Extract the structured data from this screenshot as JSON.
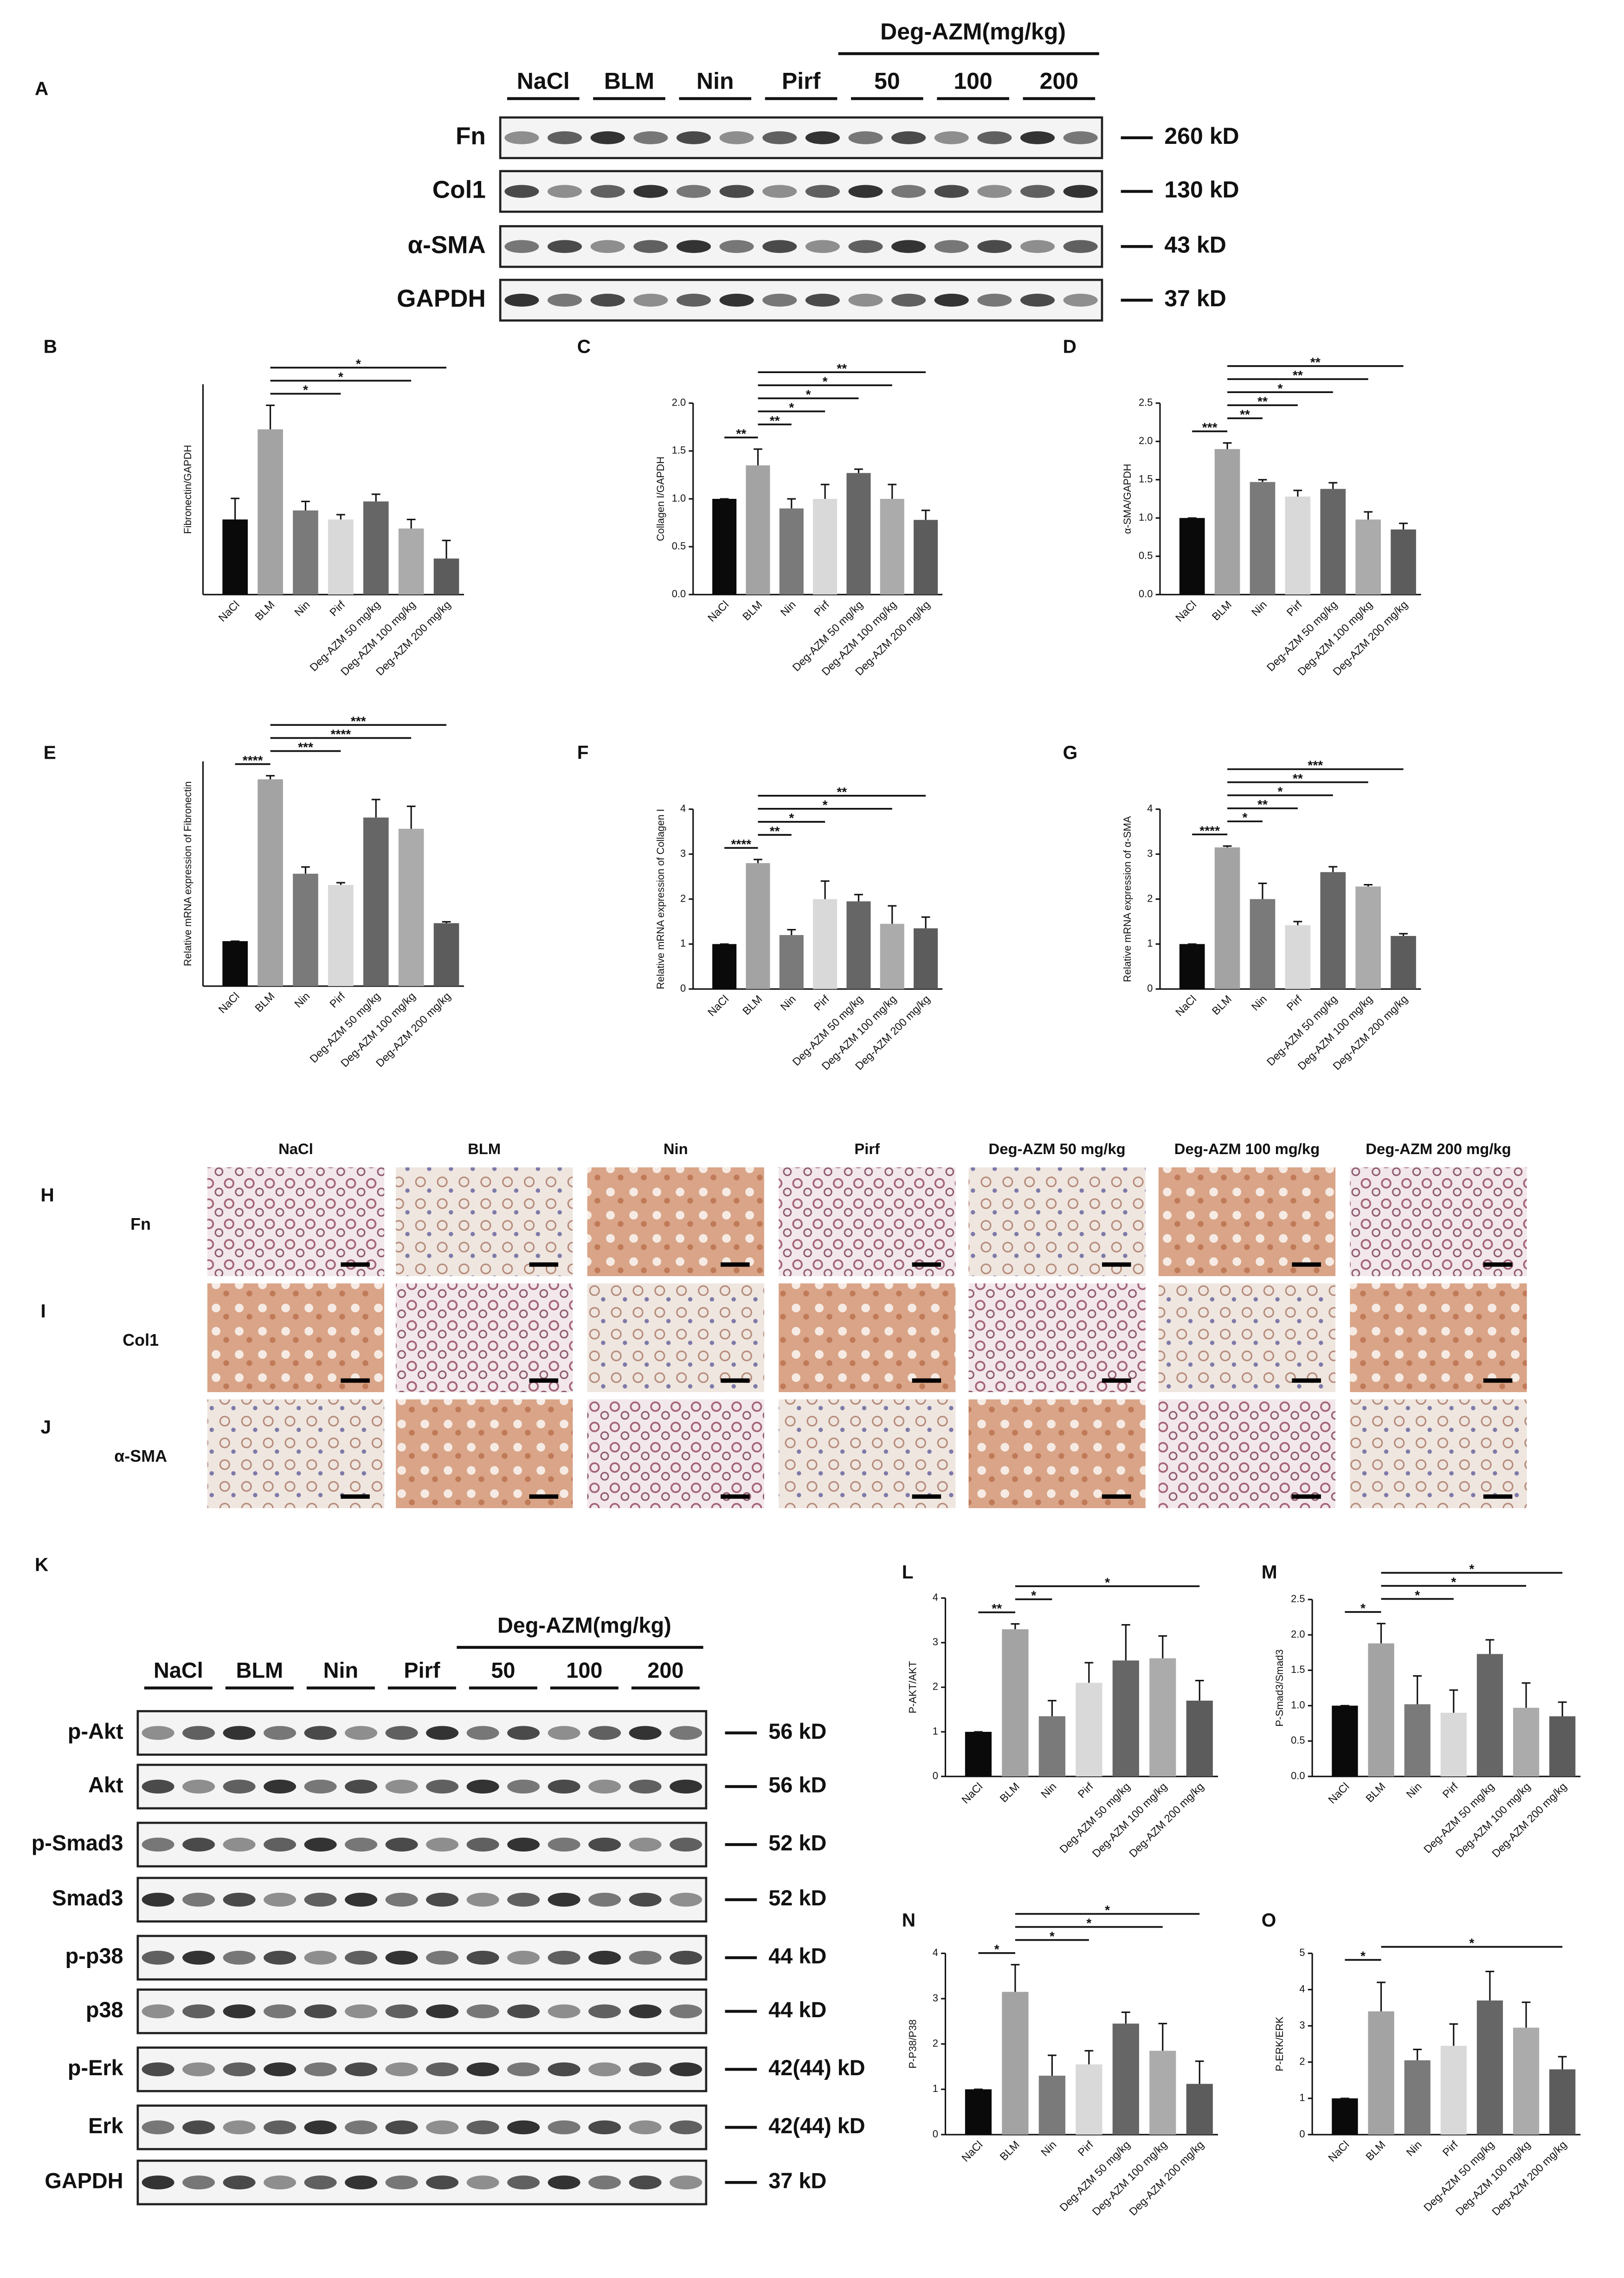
{
  "blot_a": {
    "letter": "A",
    "group_label": "Deg-AZM(mg/kg)",
    "lanes": [
      "NaCl",
      "BLM",
      "Nin",
      "Pirf",
      "50",
      "100",
      "200"
    ],
    "rows": [
      {
        "label": "Fn",
        "size": "260 kD"
      },
      {
        "label": "Col1",
        "size": "130 kD"
      },
      {
        "label": "α-SMA",
        "size": "43 kD"
      },
      {
        "label": "GAPDH",
        "size": "37 kD"
      }
    ]
  },
  "histology": {
    "columns": [
      "NaCl",
      "BLM",
      "Nin",
      "Pirf",
      "Deg-AZM 50 mg/kg",
      "Deg-AZM 100 mg/kg",
      "Deg-AZM 200 mg/kg"
    ],
    "rows": [
      {
        "letter": "H",
        "label": "Fn"
      },
      {
        "letter": "I",
        "label": "Col1"
      },
      {
        "letter": "J",
        "label": "α-SMA"
      }
    ]
  },
  "blot_k": {
    "letter": "K",
    "group_label": "Deg-AZM(mg/kg)",
    "lanes": [
      "NaCl",
      "BLM",
      "Nin",
      "Pirf",
      "50",
      "100",
      "200"
    ],
    "rows": [
      {
        "label": "p-Akt",
        "size": "56 kD"
      },
      {
        "label": "Akt",
        "size": "56 kD"
      },
      {
        "label": "p-Smad3",
        "size": "52 kD"
      },
      {
        "label": "Smad3",
        "size": "52 kD"
      },
      {
        "label": "p-p38",
        "size": "44 kD"
      },
      {
        "label": "p38",
        "size": "44 kD"
      },
      {
        "label": "p-Erk",
        "size": "42(44) kD"
      },
      {
        "label": "Erk",
        "size": "42(44) kD"
      },
      {
        "label": "GAPDH",
        "size": "37 kD"
      }
    ]
  },
  "chart_data": [
    {
      "type": "bar",
      "letter": "B",
      "ylabel": "Fibronectin/GAPDH",
      "categories": [
        "NaCl",
        "BLM",
        "Nin",
        "Pirf",
        "Deg-AZM 50 mg/kg",
        "Deg-AZM 100 mg/kg",
        "Deg-AZM 200 mg/kg"
      ],
      "values": [
        1.25,
        2.75,
        1.4,
        1.25,
        1.55,
        1.1,
        0.6
      ],
      "errors": [
        0.35,
        0.4,
        0.15,
        0.08,
        0.12,
        0.15,
        0.3
      ],
      "colors": [
        "#0a0a0a",
        "#a3a3a3",
        "#7a7a7a",
        "#d9d9d9",
        "#666666",
        "#ababab",
        "#5c5c5c"
      ],
      "ylim": [
        0,
        3.5
      ],
      "annotations": [
        {
          "text": "*",
          "from": "BLM",
          "to": "Pirf"
        },
        {
          "text": "*",
          "from": "BLM",
          "to": "Deg-AZM 100 mg/kg"
        },
        {
          "text": "*",
          "from": "BLM",
          "to": "Deg-AZM 200 mg/kg"
        }
      ]
    },
    {
      "type": "bar",
      "letter": "C",
      "ylabel": "Collagen I/GAPDH",
      "categories": [
        "NaCl",
        "BLM",
        "Nin",
        "Pirf",
        "Deg-AZM 50 mg/kg",
        "Deg-AZM 100 mg/kg",
        "Deg-AZM 200 mg/kg"
      ],
      "values": [
        1.0,
        1.35,
        0.9,
        1.0,
        1.27,
        1.0,
        0.78
      ],
      "errors": [
        0,
        0.17,
        0.1,
        0.15,
        0.04,
        0.15,
        0.1
      ],
      "colors": [
        "#0a0a0a",
        "#a3a3a3",
        "#7a7a7a",
        "#d9d9d9",
        "#666666",
        "#ababab",
        "#5c5c5c"
      ],
      "ylim": [
        0,
        2
      ],
      "yticks": [
        {
          "value": 0,
          "label": "0.0"
        },
        0.5,
        {
          "value": 1,
          "label": "1.0"
        },
        1.5,
        {
          "value": 2,
          "label": "2.0"
        }
      ],
      "annotations": [
        {
          "text": "**",
          "from": "NaCl",
          "to": "BLM"
        },
        {
          "text": "**",
          "from": "BLM",
          "to": "Nin"
        },
        {
          "text": "*",
          "from": "BLM",
          "to": "Pirf"
        },
        {
          "text": "*",
          "from": "BLM",
          "to": "Deg-AZM 50 mg/kg"
        },
        {
          "text": "*",
          "from": "BLM",
          "to": "Deg-AZM 100 mg/kg"
        },
        {
          "text": "**",
          "from": "BLM",
          "to": "Deg-AZM 200 mg/kg"
        }
      ]
    },
    {
      "type": "bar",
      "letter": "D",
      "ylabel": "α-SMA/GAPDH",
      "categories": [
        "NaCl",
        "BLM",
        "Nin",
        "Pirf",
        "Deg-AZM 50 mg/kg",
        "Deg-AZM 100 mg/kg",
        "Deg-AZM 200 mg/kg"
      ],
      "values": [
        1.0,
        1.9,
        1.47,
        1.28,
        1.38,
        0.98,
        0.85
      ],
      "errors": [
        0,
        0.08,
        0.03,
        0.08,
        0.08,
        0.1,
        0.08
      ],
      "colors": [
        "#0a0a0a",
        "#a3a3a3",
        "#7a7a7a",
        "#d9d9d9",
        "#666666",
        "#ababab",
        "#5c5c5c"
      ],
      "ylim": [
        0,
        2.5
      ],
      "yticks": [
        {
          "value": 0,
          "label": "0.0"
        },
        0.5,
        {
          "value": 1,
          "label": "1.0"
        },
        1.5,
        {
          "value": 2,
          "label": "2.0"
        },
        2.5
      ],
      "annotations": [
        {
          "text": "***",
          "from": "NaCl",
          "to": "BLM"
        },
        {
          "text": "**",
          "from": "BLM",
          "to": "Nin"
        },
        {
          "text": "**",
          "from": "BLM",
          "to": "Pirf"
        },
        {
          "text": "*",
          "from": "BLM",
          "to": "Deg-AZM 50 mg/kg"
        },
        {
          "text": "**",
          "from": "BLM",
          "to": "Deg-AZM 100 mg/kg"
        },
        {
          "text": "**",
          "from": "BLM",
          "to": "Deg-AZM 200 mg/kg"
        }
      ]
    },
    {
      "type": "bar",
      "letter": "E",
      "ylabel": "Relative mRNA expression of Fibronectin",
      "categories": [
        "NaCl",
        "BLM",
        "Nin",
        "Pirf",
        "Deg-AZM 50 mg/kg",
        "Deg-AZM 100 mg/kg",
        "Deg-AZM 200 mg/kg"
      ],
      "values": [
        1,
        4.6,
        2.5,
        2.25,
        3.75,
        3.5,
        1.4
      ],
      "errors": [
        0,
        0.08,
        0.15,
        0.05,
        0.4,
        0.5,
        0.03
      ],
      "colors": [
        "#0a0a0a",
        "#a3a3a3",
        "#7a7a7a",
        "#d9d9d9",
        "#666666",
        "#ababab",
        "#5c5c5c"
      ],
      "ylim": [
        0,
        5
      ],
      "annotations": [
        {
          "text": "****",
          "from": "NaCl",
          "to": "BLM"
        },
        {
          "text": "***",
          "from": "BLM",
          "to": "Pirf"
        },
        {
          "text": "****",
          "from": "BLM",
          "to": "Deg-AZM 100 mg/kg"
        },
        {
          "text": "***",
          "from": "BLM",
          "to": "Deg-AZM 200 mg/kg"
        }
      ]
    },
    {
      "type": "bar",
      "letter": "F",
      "ylabel": "Relative mRNA expression of Collagen I",
      "categories": [
        "NaCl",
        "BLM",
        "Nin",
        "Pirf",
        "Deg-AZM 50 mg/kg",
        "Deg-AZM 100 mg/kg",
        "Deg-AZM 200 mg/kg"
      ],
      "values": [
        1,
        2.8,
        1.2,
        2.0,
        1.95,
        1.45,
        1.35
      ],
      "errors": [
        0,
        0.08,
        0.12,
        0.4,
        0.15,
        0.4,
        0.25
      ],
      "colors": [
        "#0a0a0a",
        "#a3a3a3",
        "#7a7a7a",
        "#d9d9d9",
        "#666666",
        "#ababab",
        "#5c5c5c"
      ],
      "ylim": [
        0,
        4
      ],
      "yticks": [
        0,
        1,
        2,
        3,
        4
      ],
      "annotations": [
        {
          "text": "****",
          "from": "NaCl",
          "to": "BLM"
        },
        {
          "text": "**",
          "from": "BLM",
          "to": "Nin"
        },
        {
          "text": "*",
          "from": "BLM",
          "to": "Pirf"
        },
        {
          "text": "*",
          "from": "BLM",
          "to": "Deg-AZM 100 mg/kg"
        },
        {
          "text": "**",
          "from": "BLM",
          "to": "Deg-AZM 200 mg/kg"
        }
      ]
    },
    {
      "type": "bar",
      "letter": "G",
      "ylabel": "Relative mRNA expression of α-SMA",
      "categories": [
        "NaCl",
        "BLM",
        "Nin",
        "Pirf",
        "Deg-AZM 50 mg/kg",
        "Deg-AZM 100 mg/kg",
        "Deg-AZM 200 mg/kg"
      ],
      "values": [
        1,
        3.15,
        2.0,
        1.42,
        2.6,
        2.28,
        1.18
      ],
      "errors": [
        0,
        0.03,
        0.35,
        0.08,
        0.12,
        0.04,
        0.05
      ],
      "colors": [
        "#0a0a0a",
        "#a3a3a3",
        "#7a7a7a",
        "#d9d9d9",
        "#666666",
        "#ababab",
        "#5c5c5c"
      ],
      "ylim": [
        0,
        4
      ],
      "yticks": [
        0,
        1,
        2,
        3,
        4
      ],
      "annotations": [
        {
          "text": "****",
          "from": "NaCl",
          "to": "BLM"
        },
        {
          "text": "*",
          "from": "BLM",
          "to": "Nin"
        },
        {
          "text": "**",
          "from": "BLM",
          "to": "Pirf"
        },
        {
          "text": "*",
          "from": "BLM",
          "to": "Deg-AZM 50 mg/kg"
        },
        {
          "text": "**",
          "from": "BLM",
          "to": "Deg-AZM 100 mg/kg"
        },
        {
          "text": "***",
          "from": "BLM",
          "to": "Deg-AZM 200 mg/kg"
        }
      ]
    },
    {
      "type": "bar",
      "letter": "L",
      "ylabel": "P-AKT/AKT",
      "categories": [
        "NaCl",
        "BLM",
        "Nin",
        "Pirf",
        "Deg-AZM 50 mg/kg",
        "Deg-AZM 100 mg/kg",
        "Deg-AZM 200 mg/kg"
      ],
      "values": [
        1,
        3.3,
        1.35,
        2.1,
        2.6,
        2.65,
        1.7
      ],
      "errors": [
        0,
        0.12,
        0.35,
        0.45,
        0.8,
        0.5,
        0.45
      ],
      "colors": [
        "#0a0a0a",
        "#a3a3a3",
        "#7a7a7a",
        "#d9d9d9",
        "#666666",
        "#ababab",
        "#5c5c5c"
      ],
      "ylim": [
        0,
        4
      ],
      "yticks": [
        0,
        1,
        2,
        3,
        4
      ],
      "annotations": [
        {
          "text": "**",
          "from": "NaCl",
          "to": "BLM"
        },
        {
          "text": "*",
          "from": "BLM",
          "to": "Nin"
        },
        {
          "text": "*",
          "from": "BLM",
          "to": "Deg-AZM 200 mg/kg"
        }
      ]
    },
    {
      "type": "bar",
      "letter": "M",
      "ylabel": "P-Smad3/Smad3",
      "categories": [
        "NaCl",
        "BLM",
        "Nin",
        "Pirf",
        "Deg-AZM 50 mg/kg",
        "Deg-AZM 100 mg/kg",
        "Deg-AZM 200 mg/kg"
      ],
      "values": [
        1,
        1.88,
        1.02,
        0.9,
        1.73,
        0.97,
        0.85
      ],
      "errors": [
        0,
        0.28,
        0.4,
        0.32,
        0.2,
        0.35,
        0.2
      ],
      "colors": [
        "#0a0a0a",
        "#a3a3a3",
        "#7a7a7a",
        "#d9d9d9",
        "#666666",
        "#ababab",
        "#5c5c5c"
      ],
      "ylim": [
        0,
        2.5
      ],
      "yticks": [
        {
          "value": 0,
          "label": "0.0"
        },
        0.5,
        {
          "value": 1,
          "label": "1.0"
        },
        1.5,
        {
          "value": 2,
          "label": "2.0"
        },
        2.5
      ],
      "annotations": [
        {
          "text": "*",
          "from": "NaCl",
          "to": "BLM"
        },
        {
          "text": "*",
          "from": "BLM",
          "to": "Pirf"
        },
        {
          "text": "*",
          "from": "BLM",
          "to": "Deg-AZM 100 mg/kg"
        },
        {
          "text": "*",
          "from": "BLM",
          "to": "Deg-AZM 200 mg/kg"
        }
      ]
    },
    {
      "type": "bar",
      "letter": "N",
      "ylabel": "P-P38/P38",
      "categories": [
        "NaCl",
        "BLM",
        "Nin",
        "Pirf",
        "Deg-AZM 50 mg/kg",
        "Deg-AZM 100 mg/kg",
        "Deg-AZM 200 mg/kg"
      ],
      "values": [
        1,
        3.15,
        1.3,
        1.55,
        2.45,
        1.85,
        1.12
      ],
      "errors": [
        0,
        0.6,
        0.45,
        0.3,
        0.25,
        0.6,
        0.5
      ],
      "colors": [
        "#0a0a0a",
        "#a3a3a3",
        "#7a7a7a",
        "#d9d9d9",
        "#666666",
        "#ababab",
        "#5c5c5c"
      ],
      "ylim": [
        0,
        4
      ],
      "yticks": [
        0,
        1,
        2,
        3,
        4
      ],
      "annotations": [
        {
          "text": "*",
          "from": "NaCl",
          "to": "BLM"
        },
        {
          "text": "*",
          "from": "BLM",
          "to": "Pirf"
        },
        {
          "text": "*",
          "from": "BLM",
          "to": "Deg-AZM 100 mg/kg"
        },
        {
          "text": "*",
          "from": "BLM",
          "to": "Deg-AZM 200 mg/kg"
        }
      ]
    },
    {
      "type": "bar",
      "letter": "O",
      "ylabel": "P-ERK/ERK",
      "categories": [
        "NaCl",
        "BLM",
        "Nin",
        "Pirf",
        "Deg-AZM 50 mg/kg",
        "Deg-AZM 100 mg/kg",
        "Deg-AZM 200 mg/kg"
      ],
      "values": [
        1,
        3.4,
        2.05,
        2.45,
        3.7,
        2.95,
        1.8
      ],
      "errors": [
        0,
        0.8,
        0.3,
        0.6,
        0.8,
        0.7,
        0.35
      ],
      "colors": [
        "#0a0a0a",
        "#a3a3a3",
        "#7a7a7a",
        "#d9d9d9",
        "#666666",
        "#ababab",
        "#5c5c5c"
      ],
      "ylim": [
        0,
        5
      ],
      "yticks": [
        0,
        1,
        2,
        3,
        4,
        5
      ],
      "annotations": [
        {
          "text": "*",
          "from": "NaCl",
          "to": "BLM"
        },
        {
          "text": "*",
          "from": "BLM",
          "to": "Deg-AZM 200 mg/kg"
        }
      ]
    }
  ]
}
